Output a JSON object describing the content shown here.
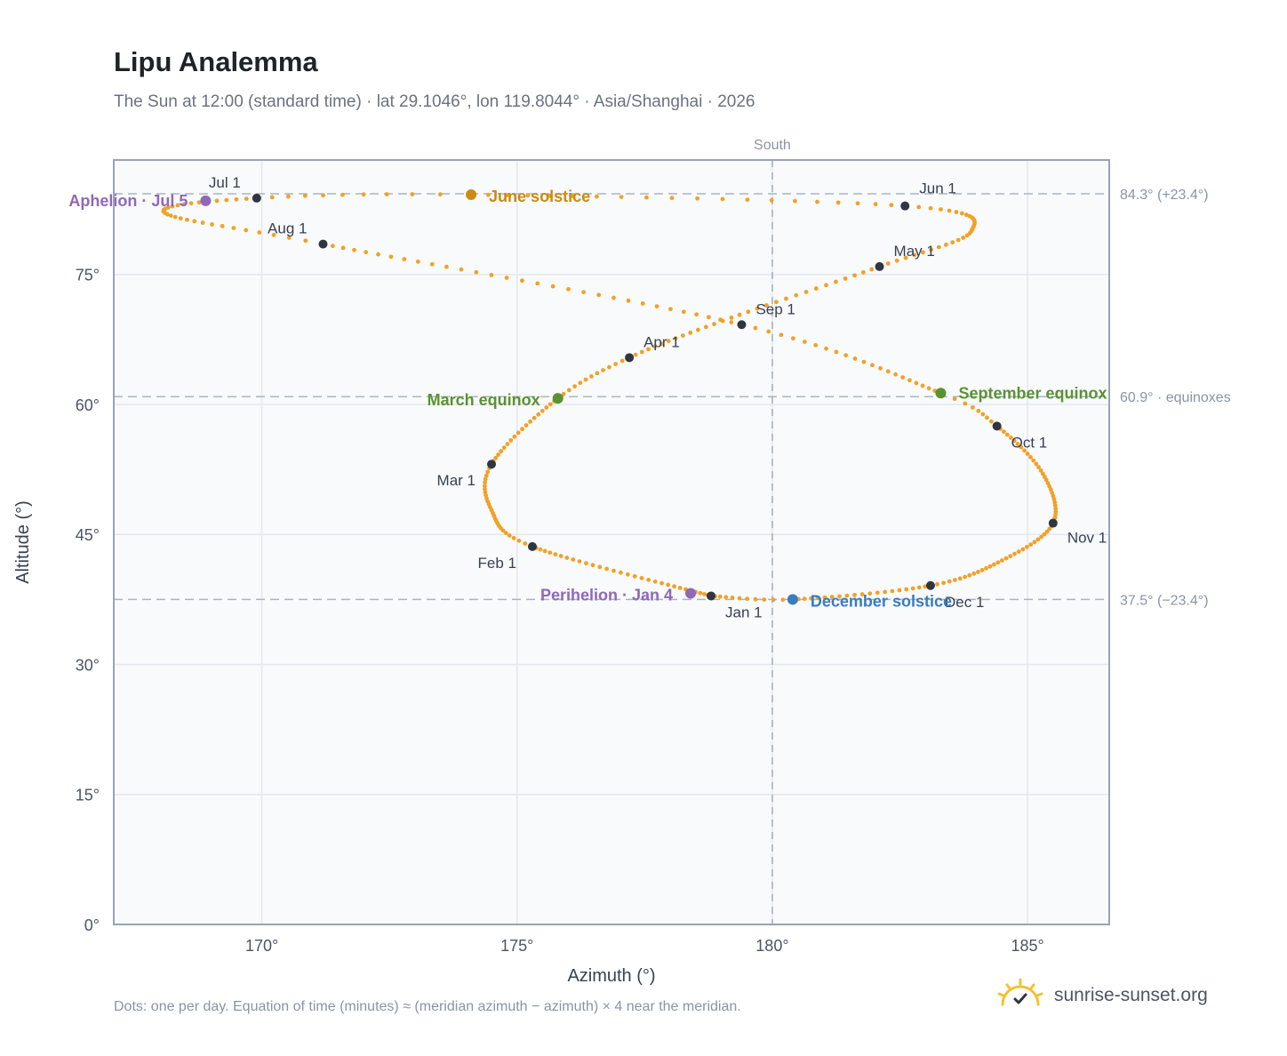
{
  "header": {
    "title": "Lipu Analemma",
    "subtitle": "The Sun at 12:00 (standard time) · lat 29.1046°, lon 119.8044° · Asia/Shanghai · 2026"
  },
  "footer": {
    "note": "Dots: one per day. Equation of time (minutes) ≈ (meridian azimuth − azimuth) × 4 near the meridian.",
    "brand": "sunrise-sunset.org",
    "brand_icon": "sun-check-icon"
  },
  "colors": {
    "path": "#f2a126",
    "month_marker": "#2f3641",
    "apsis": "#8f68b8",
    "june_solstice": "#cc8a12",
    "equinox": "#5a9232",
    "december_solstice": "#3a7cc0",
    "plot_bg": "#f8fafc",
    "grid": "#e3e8ee",
    "frame": "#98a4b2"
  },
  "chart_data": {
    "type": "scatter",
    "xlabel": "Azimuth (°)",
    "ylabel": "Altitude (°)",
    "xlim": [
      167.1,
      186.6
    ],
    "ylim": [
      0,
      88.2
    ],
    "x_ticks": [
      170,
      175,
      180,
      185
    ],
    "x_tick_labels": [
      "170°",
      "175°",
      "180°",
      "185°"
    ],
    "y_ticks": [
      0,
      15,
      30,
      45,
      60,
      75
    ],
    "y_tick_labels": [
      "0°",
      "15°",
      "30°",
      "45°",
      "60°",
      "75°"
    ],
    "grid": true,
    "meridian": {
      "azimuth": 180,
      "label": "South"
    },
    "reference_lines": [
      {
        "altitude": 84.3,
        "label": "84.3° (+23.4°)"
      },
      {
        "altitude": 60.9,
        "label": "60.9° · equinoxes"
      },
      {
        "altitude": 37.5,
        "label": "37.5° (−23.4°)"
      }
    ],
    "monthly_points": [
      {
        "label": "Jan 1",
        "azimuth": 178.8,
        "altitude": 37.9
      },
      {
        "label": "Feb 1",
        "azimuth": 175.3,
        "altitude": 43.6
      },
      {
        "label": "Mar 1",
        "azimuth": 174.5,
        "altitude": 53.1
      },
      {
        "label": "Apr 1",
        "azimuth": 177.2,
        "altitude": 65.4
      },
      {
        "label": "May 1",
        "azimuth": 182.1,
        "altitude": 75.9
      },
      {
        "label": "Jun 1",
        "azimuth": 182.6,
        "altitude": 82.9
      },
      {
        "label": "Jul 1",
        "azimuth": 169.9,
        "altitude": 83.8
      },
      {
        "label": "Aug 1",
        "azimuth": 171.2,
        "altitude": 78.5
      },
      {
        "label": "Sep 1",
        "azimuth": 179.4,
        "altitude": 69.2
      },
      {
        "label": "Oct 1",
        "azimuth": 184.4,
        "altitude": 57.5
      },
      {
        "label": "Nov 1",
        "azimuth": 185.5,
        "altitude": 46.3
      },
      {
        "label": "Dec 1",
        "azimuth": 183.1,
        "altitude": 39.1
      }
    ],
    "events": [
      {
        "label": "March equinox",
        "azimuth": 175.8,
        "altitude": 60.7,
        "color_key": "equinox"
      },
      {
        "label": "June solstice",
        "azimuth": 174.1,
        "altitude": 84.2,
        "color_key": "june_solstice"
      },
      {
        "label": "September equinox",
        "azimuth": 183.3,
        "altitude": 61.3,
        "color_key": "equinox"
      },
      {
        "label": "December solstice",
        "azimuth": 180.4,
        "altitude": 37.5,
        "color_key": "december_solstice"
      },
      {
        "label": "Perihelion · Jan 4",
        "azimuth": 178.4,
        "altitude": 38.2,
        "color_key": "apsis"
      },
      {
        "label": "Aphelion · Jul 5",
        "azimuth": 168.9,
        "altitude": 83.5,
        "color_key": "apsis"
      }
    ],
    "daily_path_anchors": [
      {
        "day": 1,
        "azimuth": 178.8,
        "altitude": 37.9
      },
      {
        "day": 32,
        "azimuth": 175.3,
        "altitude": 43.6
      },
      {
        "day": 46,
        "azimuth": 174.5,
        "altitude": 47.8
      },
      {
        "day": 60,
        "azimuth": 174.5,
        "altitude": 53.1
      },
      {
        "day": 79,
        "azimuth": 175.8,
        "altitude": 60.7
      },
      {
        "day": 91,
        "azimuth": 177.2,
        "altitude": 65.4
      },
      {
        "day": 105,
        "azimuth": 179.2,
        "altitude": 70.0
      },
      {
        "day": 121,
        "azimuth": 182.1,
        "altitude": 75.9
      },
      {
        "day": 135,
        "azimuth": 183.9,
        "altitude": 80.0
      },
      {
        "day": 152,
        "azimuth": 182.6,
        "altitude": 82.9
      },
      {
        "day": 172,
        "azimuth": 174.1,
        "altitude": 84.2
      },
      {
        "day": 182,
        "azimuth": 169.9,
        "altitude": 83.8
      },
      {
        "day": 197,
        "azimuth": 168.1,
        "altitude": 82.1
      },
      {
        "day": 213,
        "azimuth": 171.2,
        "altitude": 78.5
      },
      {
        "day": 244,
        "azimuth": 179.4,
        "altitude": 69.2
      },
      {
        "day": 266,
        "azimuth": 183.3,
        "altitude": 61.3
      },
      {
        "day": 274,
        "azimuth": 184.4,
        "altitude": 57.5
      },
      {
        "day": 289,
        "azimuth": 185.3,
        "altitude": 52.0
      },
      {
        "day": 305,
        "azimuth": 185.5,
        "altitude": 46.3
      },
      {
        "day": 320,
        "azimuth": 184.5,
        "altitude": 42.0
      },
      {
        "day": 335,
        "azimuth": 183.1,
        "altitude": 39.1
      },
      {
        "day": 355,
        "azimuth": 180.4,
        "altitude": 37.5
      },
      {
        "day": 366,
        "azimuth": 178.8,
        "altitude": 37.9
      }
    ]
  }
}
